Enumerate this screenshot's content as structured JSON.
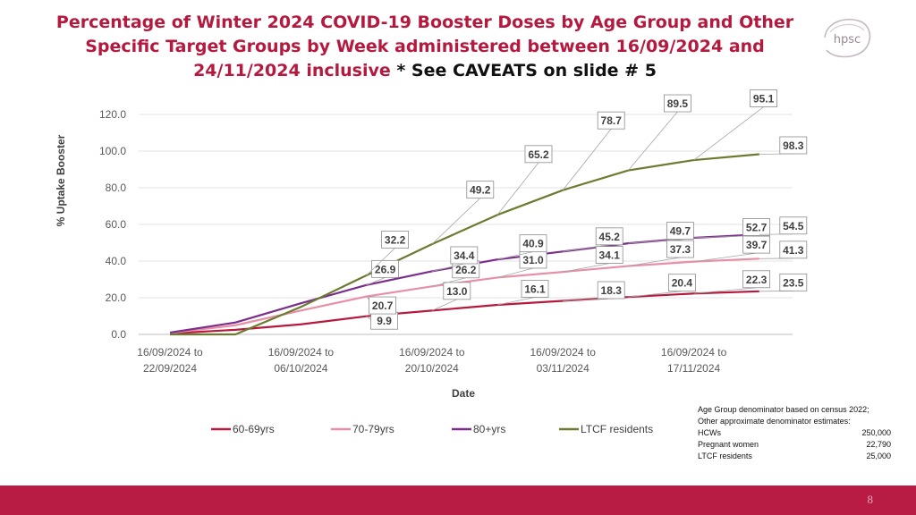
{
  "title": {
    "main": "Percentage of Winter 2024 COVID-19 Booster Doses by Age Group and Other Specific Target Groups by Week administered between 16/09/2024 and 24/11/2024 inclusive",
    "tail": " * See CAVEATS on slide # 5",
    "color": "#b5193e"
  },
  "logo": {
    "text": "hpsc",
    "icon": "hpsc-logo-icon"
  },
  "notes": {
    "intro_1": "Age Group denominator based on census 2022;",
    "intro_2": "Other approximate denominator estimates:",
    "rows": [
      {
        "label": "HCWs",
        "value": "250,000"
      },
      {
        "label": "Pregnant women",
        "value": "22,790"
      },
      {
        "label": "LTCF residents",
        "value": "25,000"
      }
    ]
  },
  "footer": {
    "page_number": "8",
    "color": "#b81c45"
  },
  "chart_data": {
    "type": "line",
    "xlabel": "Date",
    "ylabel": "% Uptake Booster",
    "ylim": [
      0,
      120
    ],
    "y_ticks": [
      "0.0",
      "20.0",
      "40.0",
      "60.0",
      "80.0",
      "100.0",
      "120.0"
    ],
    "x_tick_labels": [
      [
        "16/09/2024 to",
        "22/09/2024"
      ],
      [
        "16/09/2024 to",
        "06/10/2024"
      ],
      [
        "16/09/2024 to",
        "20/10/2024"
      ],
      [
        "16/09/2024 to",
        "03/11/2024"
      ],
      [
        "16/09/2024 to",
        "17/11/2024"
      ]
    ],
    "grid": true,
    "legend_position": "bottom",
    "series": [
      {
        "name": "60-69yrs",
        "color": "#b5193e",
        "values": [
          0.5,
          2.5,
          5.5,
          9.9,
          13.0,
          16.1,
          18.3,
          20.4,
          22.3,
          23.5
        ],
        "labels": [
          null,
          null,
          null,
          "9.9",
          "13.0",
          "16.1",
          "18.3",
          "20.4",
          "22.3",
          "23.5"
        ]
      },
      {
        "name": "70-79yrs",
        "color": "#e78fa6",
        "values": [
          0.8,
          5.0,
          13.0,
          20.7,
          26.2,
          31.0,
          34.1,
          37.3,
          39.7,
          41.3
        ],
        "labels": [
          null,
          null,
          null,
          "20.7",
          "26.2",
          "31.0",
          "34.1",
          "37.3",
          "39.7",
          "41.3"
        ]
      },
      {
        "name": "80+yrs",
        "color": "#7b2d8b",
        "values": [
          1.0,
          6.5,
          17.0,
          26.9,
          34.4,
          40.9,
          45.2,
          49.7,
          52.7,
          54.5
        ],
        "labels": [
          null,
          null,
          null,
          "26.9",
          "34.4",
          "40.9",
          "45.2",
          "49.7",
          "52.7",
          "54.5"
        ]
      },
      {
        "name": "LTCF residents",
        "color": "#6b7b2f",
        "values": [
          0.0,
          0.0,
          15.0,
          32.2,
          49.2,
          65.2,
          78.7,
          89.5,
          95.1,
          98.3
        ],
        "labels": [
          null,
          null,
          null,
          "32.2",
          "49.2",
          "65.2",
          "78.7",
          "89.5",
          "95.1",
          "98.3"
        ]
      }
    ]
  }
}
